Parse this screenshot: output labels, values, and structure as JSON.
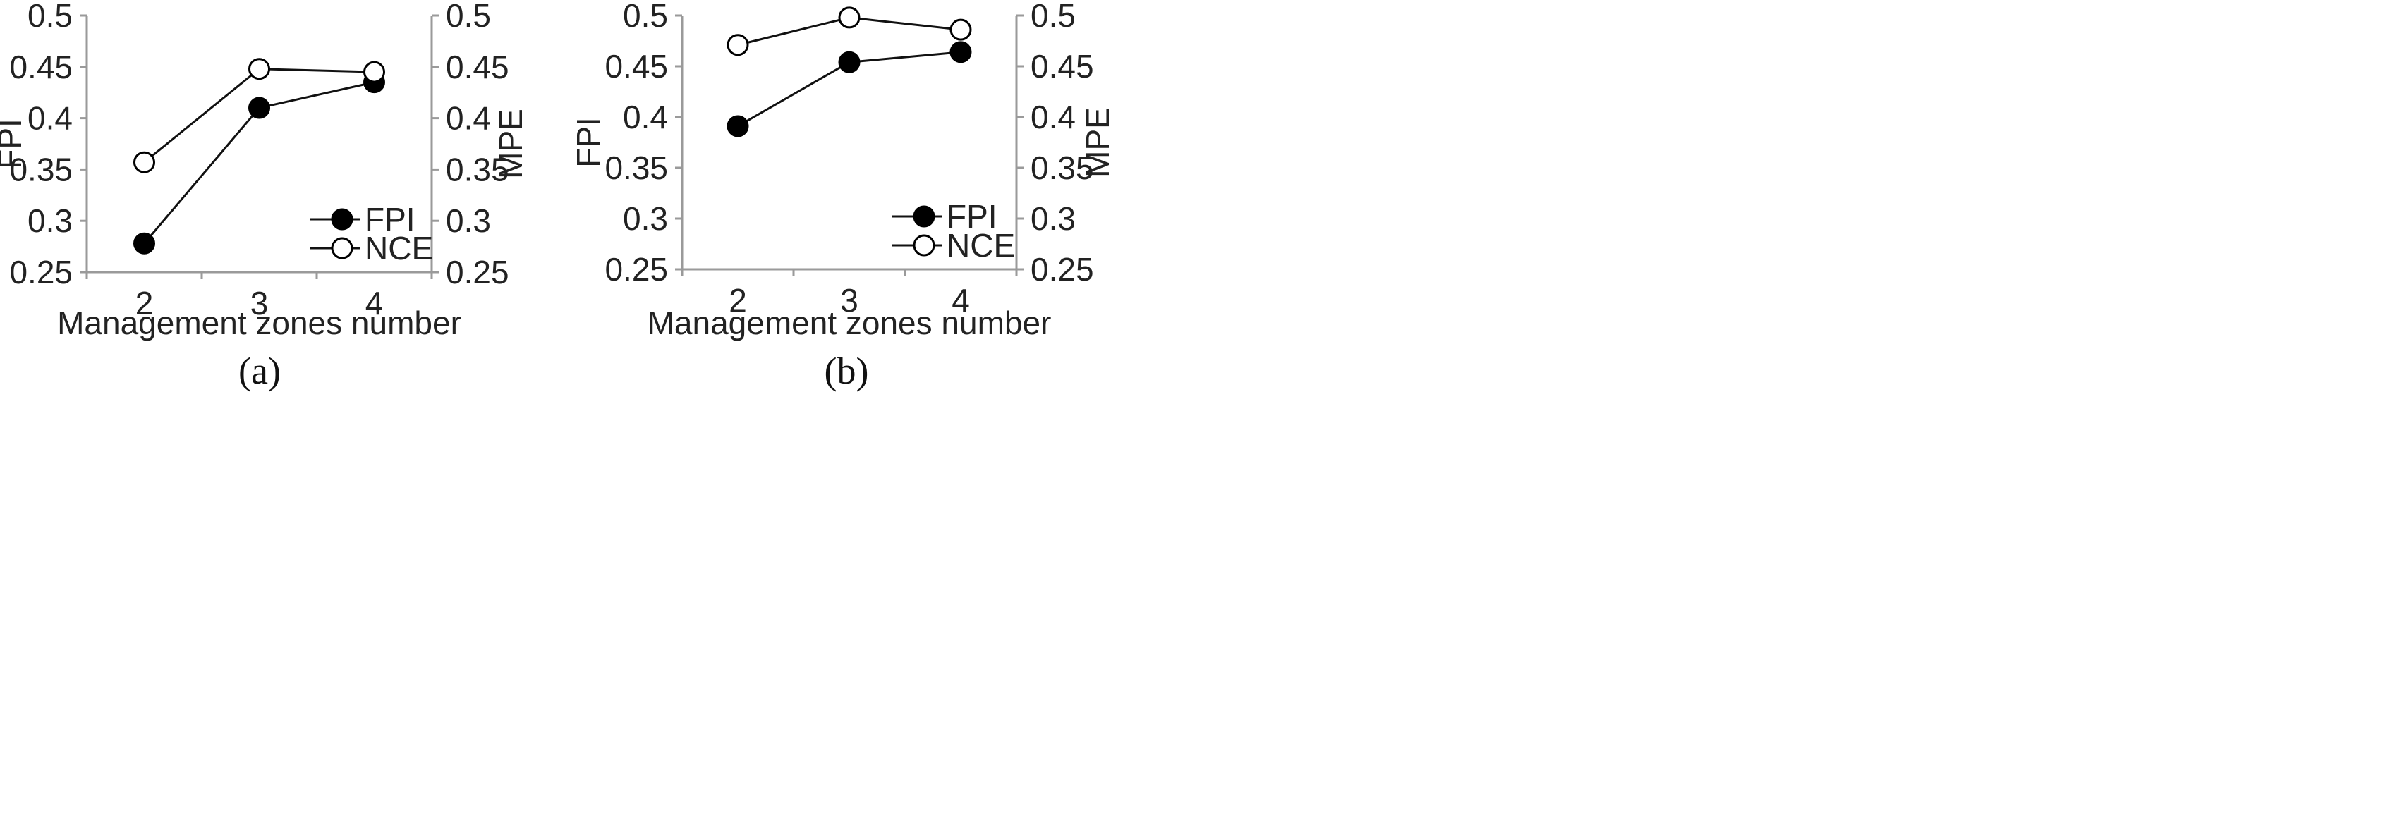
{
  "chart_data": [
    {
      "panel_label": "(a)",
      "type": "line",
      "xlabel": "Management zones number",
      "ylabel": "FPI",
      "y2label": "MPE",
      "categories": [
        "2",
        "3",
        "4"
      ],
      "ylim": [
        0.25,
        0.5
      ],
      "y_ticks": [
        "0.25",
        "0.3",
        "0.35",
        "0.4",
        "0.45",
        "0.5"
      ],
      "y2_ticks": [
        "0.25",
        "0.3",
        "0.35",
        "0.4",
        "0.45",
        "0.5"
      ],
      "legend_position": "bottom-right",
      "series": [
        {
          "name": "FPI",
          "marker": "filled-circle",
          "values": [
            0.278,
            0.41,
            0.435
          ]
        },
        {
          "name": "NCE",
          "marker": "open-circle",
          "values": [
            0.357,
            0.448,
            0.445
          ]
        }
      ]
    },
    {
      "panel_label": "(b)",
      "type": "line",
      "xlabel": "Management zones number",
      "ylabel": "FPI",
      "y2label": "MPE",
      "categories": [
        "2",
        "3",
        "4"
      ],
      "ylim": [
        0.25,
        0.5
      ],
      "y_ticks": [
        "0.25",
        "0.3",
        "0.35",
        "0.4",
        "0.45",
        "0.5"
      ],
      "y2_ticks": [
        "0.25",
        "0.3",
        "0.35",
        "0.4",
        "0.45",
        "0.5"
      ],
      "legend_position": "bottom-right",
      "series": [
        {
          "name": "FPI",
          "marker": "filled-circle",
          "values": [
            0.391,
            0.454,
            0.464
          ]
        },
        {
          "name": "NCE",
          "marker": "open-circle",
          "values": [
            0.471,
            0.498,
            0.486
          ]
        }
      ]
    }
  ]
}
